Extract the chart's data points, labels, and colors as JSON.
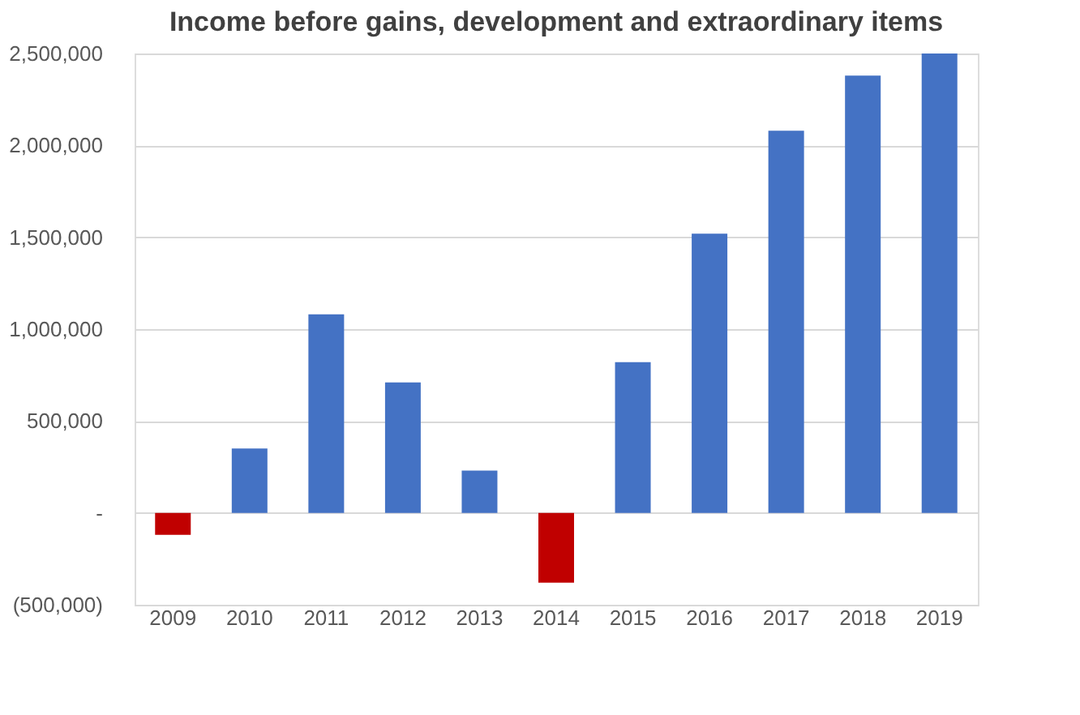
{
  "chart_data": {
    "type": "bar",
    "title": "Income before gains, development and extraordinary items",
    "categories": [
      "2009",
      "2010",
      "2011",
      "2012",
      "2013",
      "2014",
      "2015",
      "2016",
      "2017",
      "2018",
      "2019"
    ],
    "values": [
      -120000,
      350000,
      1080000,
      710000,
      230000,
      -380000,
      820000,
      1520000,
      2080000,
      2380000,
      2500000
    ],
    "colors": [
      "#c00000",
      "#4472c4",
      "#4472c4",
      "#4472c4",
      "#4472c4",
      "#c00000",
      "#4472c4",
      "#4472c4",
      "#4472c4",
      "#4472c4",
      "#4472c4"
    ],
    "ylim": [
      -500000,
      2500000
    ],
    "yticks": [
      {
        "value": -500000,
        "label": "(500,000)"
      },
      {
        "value": 0,
        "label": "-"
      },
      {
        "value": 500000,
        "label": "500,000"
      },
      {
        "value": 1000000,
        "label": "1,000,000"
      },
      {
        "value": 1500000,
        "label": "1,500,000"
      },
      {
        "value": 2000000,
        "label": "2,000,000"
      },
      {
        "value": 2500000,
        "label": "2,500,000"
      }
    ],
    "grid": "y"
  }
}
